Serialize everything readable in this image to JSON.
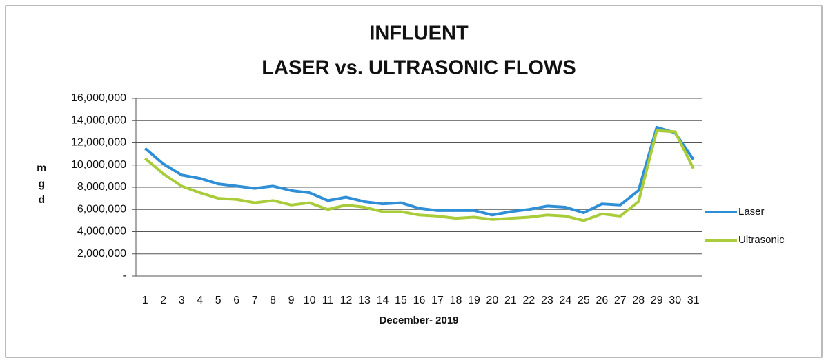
{
  "chart_data": {
    "type": "line",
    "title": "INFLUENT",
    "subtitle": "LASER vs. ULTRASONIC FLOWS",
    "x_label": "December- 2019",
    "y_label": "mgd",
    "categories": [
      "1",
      "2",
      "3",
      "4",
      "5",
      "6",
      "7",
      "8",
      "9",
      "10",
      "11",
      "12",
      "13",
      "14",
      "15",
      "16",
      "17",
      "18",
      "19",
      "20",
      "21",
      "22",
      "23",
      "24",
      "25",
      "26",
      "27",
      "28",
      "29",
      "30",
      "31"
    ],
    "series": [
      {
        "name": "Laser",
        "color": "#2e8fd6",
        "values": [
          11500000,
          10100000,
          9100000,
          8800000,
          8300000,
          8100000,
          7900000,
          8100000,
          7700000,
          7500000,
          6800000,
          7100000,
          6700000,
          6500000,
          6600000,
          6100000,
          5900000,
          5900000,
          5900000,
          5500000,
          5800000,
          6000000,
          6300000,
          6200000,
          5700000,
          6500000,
          6400000,
          7700000,
          13400000,
          12900000,
          10500000
        ]
      },
      {
        "name": "Ultrasonic",
        "color": "#a9cc3a",
        "values": [
          10600000,
          9200000,
          8100000,
          7500000,
          7000000,
          6900000,
          6600000,
          6800000,
          6400000,
          6600000,
          6000000,
          6400000,
          6200000,
          5800000,
          5800000,
          5500000,
          5400000,
          5200000,
          5300000,
          5100000,
          5200000,
          5300000,
          5500000,
          5400000,
          5000000,
          5600000,
          5400000,
          6700000,
          13100000,
          13000000,
          9700000
        ]
      }
    ],
    "ylim": [
      0,
      16000000
    ],
    "yticks": [
      {
        "value": 0,
        "label": "-"
      },
      {
        "value": 2000000,
        "label": "2,000,000"
      },
      {
        "value": 4000000,
        "label": "4,000,000"
      },
      {
        "value": 6000000,
        "label": "6,000,000"
      },
      {
        "value": 8000000,
        "label": "8,000,000"
      },
      {
        "value": 10000000,
        "label": "10,000,000"
      },
      {
        "value": 12000000,
        "label": "12,000,000"
      },
      {
        "value": 14000000,
        "label": "14,000,000"
      },
      {
        "value": 16000000,
        "label": "16,000,000"
      }
    ],
    "grid": true,
    "legend": "right"
  }
}
